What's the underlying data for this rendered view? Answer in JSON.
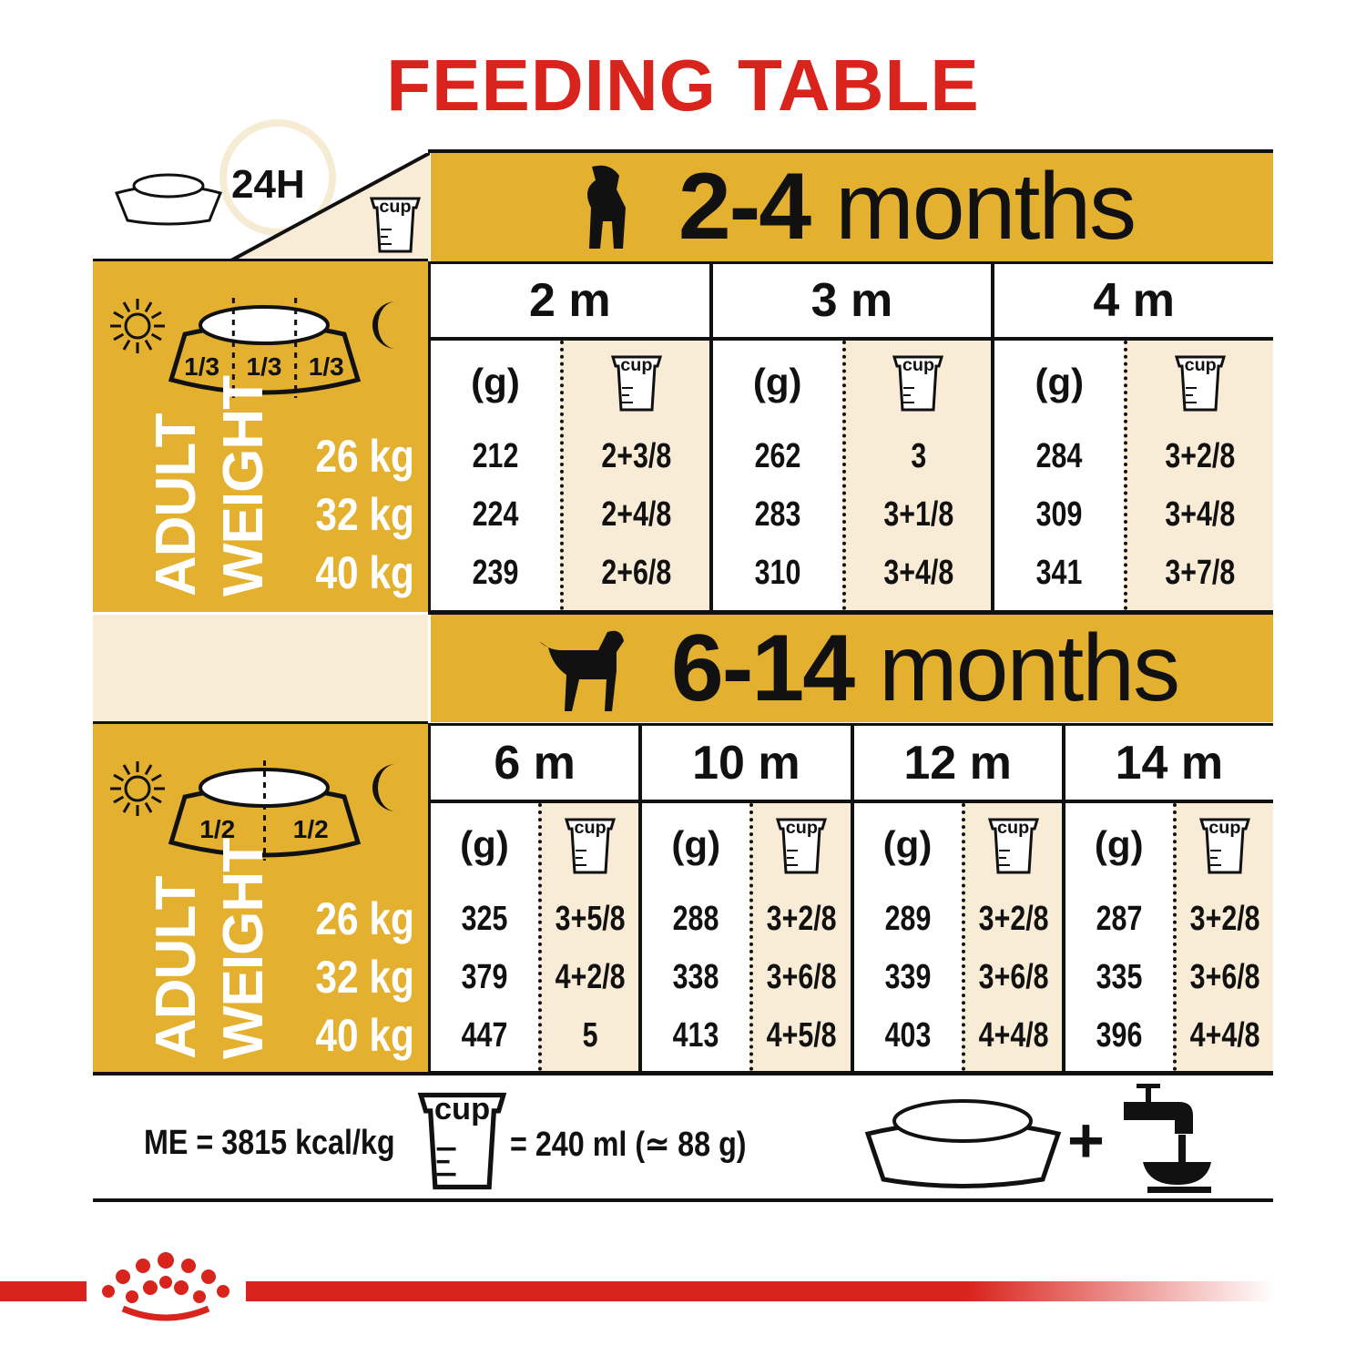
{
  "title": "FEEDING TABLE",
  "corner": {
    "label": "24H",
    "cup": "cup"
  },
  "colors": {
    "title": "#d9231d",
    "gold": "#e4b030",
    "cream": "#f9ecd7"
  },
  "sections": [
    {
      "age_num": "2-4",
      "age_word": "months",
      "portions": [
        "1/3",
        "1/3",
        "1/3"
      ],
      "weight_label": [
        "ADULT",
        "WEIGHT"
      ],
      "weights": [
        "26 kg",
        "32 kg",
        "40 kg"
      ],
      "columns": [
        {
          "month": "2 m",
          "g_label": "(g)",
          "cup_label": "cup",
          "grams": [
            "212",
            "224",
            "239"
          ],
          "cups": [
            "2+3/8",
            "2+4/8",
            "2+6/8"
          ]
        },
        {
          "month": "3 m",
          "g_label": "(g)",
          "cup_label": "cup",
          "grams": [
            "262",
            "283",
            "310"
          ],
          "cups": [
            "3",
            "3+1/8",
            "3+4/8"
          ]
        },
        {
          "month": "4 m",
          "g_label": "(g)",
          "cup_label": "cup",
          "grams": [
            "284",
            "309",
            "341"
          ],
          "cups": [
            "3+2/8",
            "3+4/8",
            "3+7/8"
          ]
        }
      ]
    },
    {
      "age_num": "6-14",
      "age_word": "months",
      "portions": [
        "1/2",
        "1/2"
      ],
      "weight_label": [
        "ADULT",
        "WEIGHT"
      ],
      "weights": [
        "26 kg",
        "32 kg",
        "40 kg"
      ],
      "columns": [
        {
          "month": "6 m",
          "g_label": "(g)",
          "cup_label": "cup",
          "grams": [
            "325",
            "379",
            "447"
          ],
          "cups": [
            "3+5/8",
            "4+2/8",
            "5"
          ]
        },
        {
          "month": "10 m",
          "g_label": "(g)",
          "cup_label": "cup",
          "grams": [
            "288",
            "338",
            "413"
          ],
          "cups": [
            "3+2/8",
            "3+6/8",
            "4+5/8"
          ]
        },
        {
          "month": "12 m",
          "g_label": "(g)",
          "cup_label": "cup",
          "grams": [
            "289",
            "339",
            "403"
          ],
          "cups": [
            "3+2/8",
            "3+6/8",
            "4+4/8"
          ]
        },
        {
          "month": "14 m",
          "g_label": "(g)",
          "cup_label": "cup",
          "grams": [
            "287",
            "335",
            "396"
          ],
          "cups": [
            "3+2/8",
            "3+6/8",
            "4+4/8"
          ]
        }
      ]
    }
  ],
  "footer": {
    "energy": "ME = 3815 kcal/kg",
    "cup": "cup",
    "cup_equiv": "= 240 ml (≃ 88 g)",
    "plus": "+"
  }
}
